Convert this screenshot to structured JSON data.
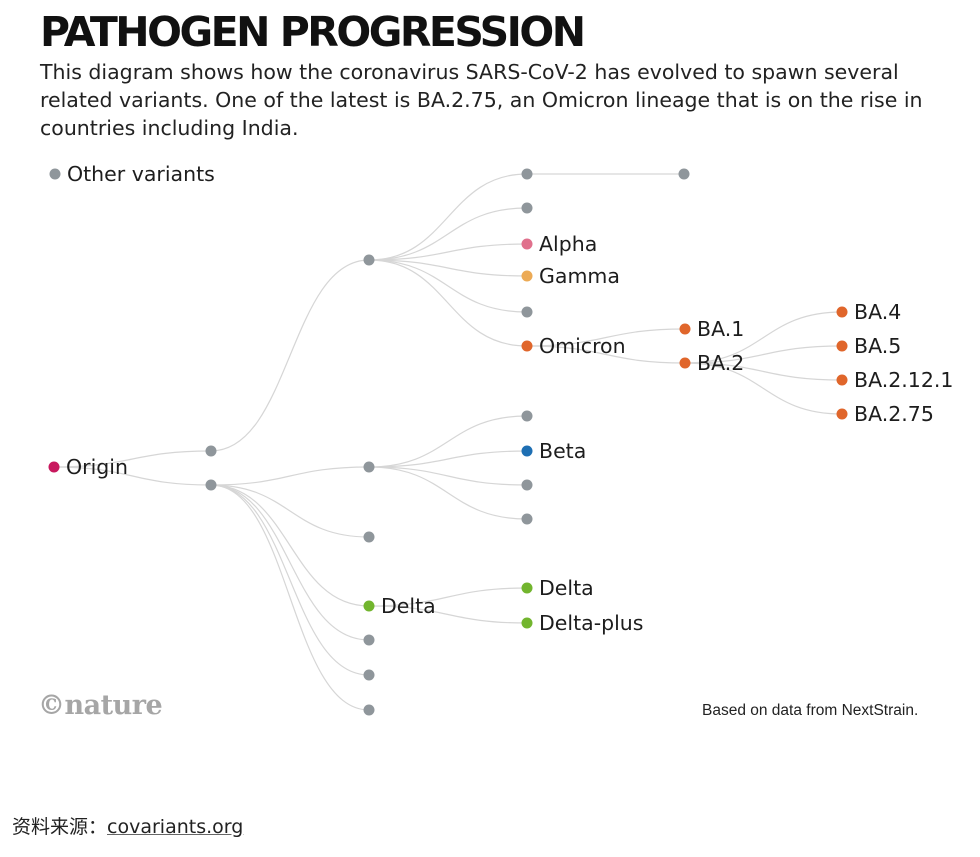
{
  "title": "PATHOGEN PROGRESSION",
  "subtitle": "This diagram shows how the coronavirus SARS-CoV-2 has evolved to spawn several related variants. One of the latest is BA.2.75, an Omicron lineage that is on the rise in countries including India.",
  "legend": {
    "label": "Other variants",
    "color": "#8f969b"
  },
  "colors": {
    "other": "#8f969b",
    "origin": "#c8185e",
    "alpha": "#e0708c",
    "gamma": "#ecaa55",
    "omicron": "#e0662b",
    "beta": "#1e6fb3",
    "delta": "#72b52e",
    "edge": "#d6d6d6"
  },
  "tree": {
    "id": "origin",
    "label": "Origin",
    "color": "origin",
    "children": [
      {
        "id": "n-a",
        "color": "other",
        "children": [
          {
            "id": "n-a1",
            "color": "other",
            "children": [
              {
                "id": "n-a1a",
                "color": "other",
                "children": [
                  {
                    "id": "n-a1a1",
                    "color": "other"
                  }
                ]
              },
              {
                "id": "n-a1b",
                "color": "other"
              },
              {
                "id": "alpha",
                "label": "Alpha",
                "color": "alpha"
              },
              {
                "id": "gamma",
                "label": "Gamma",
                "color": "gamma"
              },
              {
                "id": "n-a1c",
                "color": "other"
              },
              {
                "id": "omicron",
                "label": "Omicron",
                "color": "omicron",
                "children": [
                  {
                    "id": "ba1",
                    "label": "BA.1",
                    "color": "omicron"
                  },
                  {
                    "id": "ba2",
                    "label": "BA.2",
                    "color": "omicron",
                    "children": [
                      {
                        "id": "ba4",
                        "label": "BA.4",
                        "color": "omicron"
                      },
                      {
                        "id": "ba5",
                        "label": "BA.5",
                        "color": "omicron"
                      },
                      {
                        "id": "ba2121",
                        "label": "BA.2.12.1",
                        "color": "omicron"
                      },
                      {
                        "id": "ba275",
                        "label": "BA.2.75",
                        "color": "omicron"
                      }
                    ]
                  }
                ]
              }
            ]
          }
        ]
      },
      {
        "id": "n-b",
        "color": "other",
        "children": [
          {
            "id": "n-b1",
            "color": "other",
            "children": [
              {
                "id": "n-b1a",
                "color": "other"
              },
              {
                "id": "beta",
                "label": "Beta",
                "color": "beta"
              },
              {
                "id": "n-b1b",
                "color": "other"
              },
              {
                "id": "n-b1c",
                "color": "other"
              }
            ]
          },
          {
            "id": "n-b2",
            "color": "other"
          },
          {
            "id": "delta-parent",
            "label": "Delta",
            "color": "delta",
            "children": [
              {
                "id": "delta",
                "label": "Delta",
                "color": "delta"
              },
              {
                "id": "delta-plus",
                "label": "Delta-plus",
                "color": "delta"
              }
            ]
          },
          {
            "id": "n-b3",
            "color": "other"
          },
          {
            "id": "n-b4",
            "color": "other"
          },
          {
            "id": "n-b5",
            "color": "other"
          }
        ]
      }
    ]
  },
  "footer": {
    "logo": "©nature",
    "credit": "Based on data from NextStrain.",
    "source_prefix": "资料来源：",
    "source_link": "covariants.org"
  }
}
